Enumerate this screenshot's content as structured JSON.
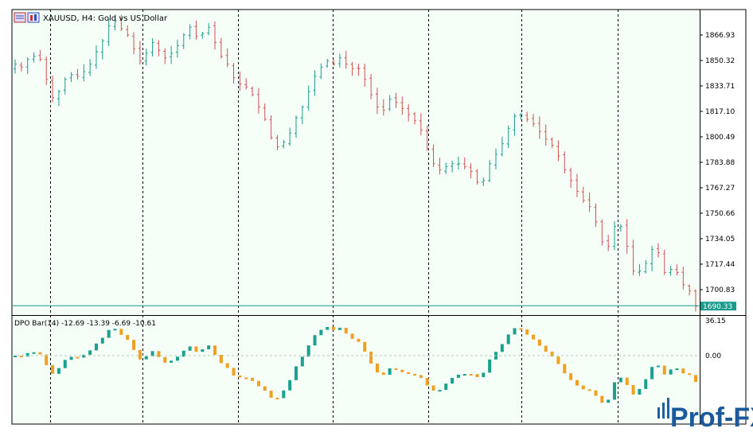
{
  "chart": {
    "symbol_caption": "XAUUSD, H4:  Gold vs US Dollar",
    "price_axis_labels": [
      "1866.93",
      "1850.32",
      "1833.71",
      "1817.10",
      "1800.49",
      "1783.88",
      "1767.27",
      "1750.66",
      "1734.05",
      "1717.44",
      "1700.83"
    ],
    "current_price": "1690.33",
    "colors": {
      "background": "#f5fff8",
      "bull": "#1a9b8c",
      "bear": "#d05050",
      "grid_separator": "#000000",
      "price_line": "#1a9b8c",
      "indicator_up": "#1aa08e",
      "indicator_down": "#f0a020"
    }
  },
  "indicator": {
    "caption": "DPO Bar(14) -12.69 -13.39 -6.69 -10.61",
    "axis_labels": [
      "36.15",
      "0.00"
    ]
  },
  "watermark": {
    "text": "Prof-FX"
  },
  "chart_data": {
    "type": "candlestick",
    "title": "XAUUSD, H4:  Gold vs US Dollar",
    "y_range": [
      1685,
      1885
    ],
    "price_ticks": [
      1866.93,
      1850.32,
      1833.71,
      1817.1,
      1800.49,
      1783.88,
      1767.27,
      1750.66,
      1734.05,
      1717.44,
      1700.83
    ],
    "last_price": 1690.33,
    "close_path_estimate": [
      1848,
      1846,
      1851,
      1853,
      1851,
      1838,
      1826,
      1830,
      1838,
      1841,
      1840,
      1843,
      1848,
      1856,
      1863,
      1873,
      1876,
      1871,
      1867,
      1858,
      1850,
      1855,
      1862,
      1857,
      1852,
      1855,
      1860,
      1867,
      1872,
      1866,
      1868,
      1872,
      1862,
      1853,
      1848,
      1839,
      1835,
      1833,
      1828,
      1820,
      1812,
      1800,
      1794,
      1797,
      1803,
      1813,
      1820,
      1830,
      1840,
      1846,
      1850,
      1848,
      1852,
      1848,
      1845,
      1845,
      1838,
      1828,
      1820,
      1818,
      1825,
      1823,
      1819,
      1815,
      1811,
      1805,
      1793,
      1783,
      1779,
      1781,
      1783,
      1783,
      1781,
      1778,
      1771,
      1772,
      1783,
      1789,
      1796,
      1806,
      1814,
      1815,
      1812,
      1809,
      1804,
      1799,
      1795,
      1788,
      1779,
      1772,
      1765,
      1759,
      1755,
      1745,
      1732,
      1729,
      1742,
      1742,
      1729,
      1713,
      1713,
      1718,
      1727,
      1725,
      1712,
      1714,
      1712,
      1704,
      1700,
      1690
    ],
    "indicator": {
      "name": "DPO Bar(14)",
      "last_values": [
        -12.69,
        -13.39,
        -6.69,
        -10.61
      ],
      "y_ticks": [
        36.15,
        0.0
      ]
    }
  }
}
